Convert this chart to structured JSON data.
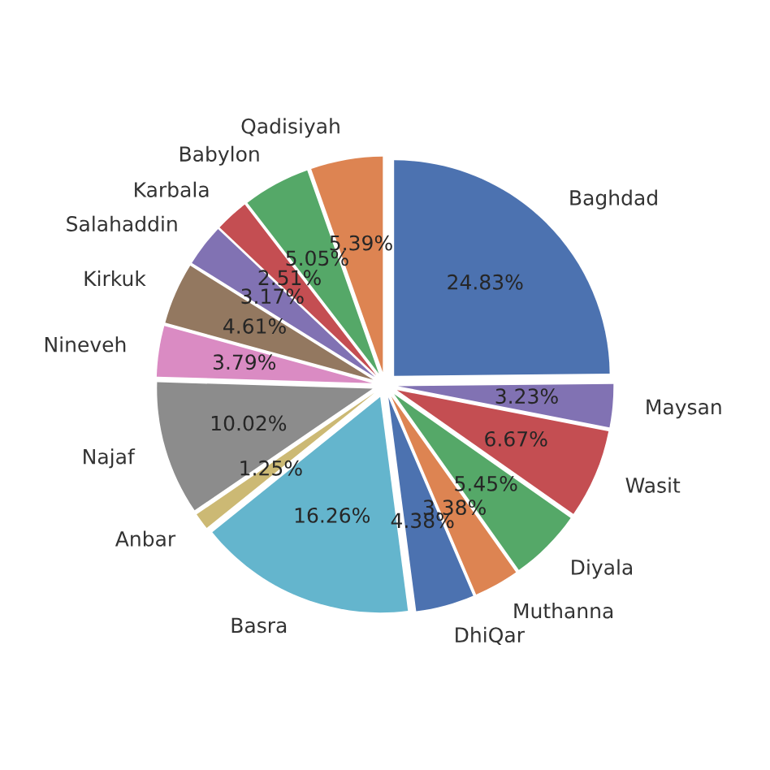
{
  "chart_data": {
    "type": "pie",
    "categories": [
      "Baghdad",
      "Maysan",
      "Wasit",
      "Diyala",
      "Muthanna",
      "DhiQar",
      "Basra",
      "Anbar",
      "Najaf",
      "Nineveh",
      "Kirkuk",
      "Salahaddin",
      "Karbala",
      "Babylon",
      "Qadisiyah"
    ],
    "values": [
      24.83,
      3.23,
      6.67,
      5.45,
      3.38,
      4.38,
      16.26,
      1.25,
      10.02,
      3.79,
      4.61,
      3.17,
      2.51,
      5.05,
      5.39
    ],
    "colors": [
      "#4c72b0",
      "#8172b3",
      "#c44e52",
      "#55a868",
      "#dd8452",
      "#4c72b0",
      "#64b5cd",
      "#ccb974",
      "#8c8c8c",
      "#da8bc3",
      "#937860",
      "#8172b3",
      "#c44e52",
      "#55a868",
      "#dd8452"
    ],
    "value_labels": [
      "24.83%",
      "3.23%",
      "6.67%",
      "5.45%",
      "3.38%",
      "4.38%",
      "16.26%",
      "1.25%",
      "10.02%",
      "3.79%",
      "4.61%",
      "3.17%",
      "2.51%",
      "5.05%",
      "5.39%"
    ],
    "legend": false
  }
}
